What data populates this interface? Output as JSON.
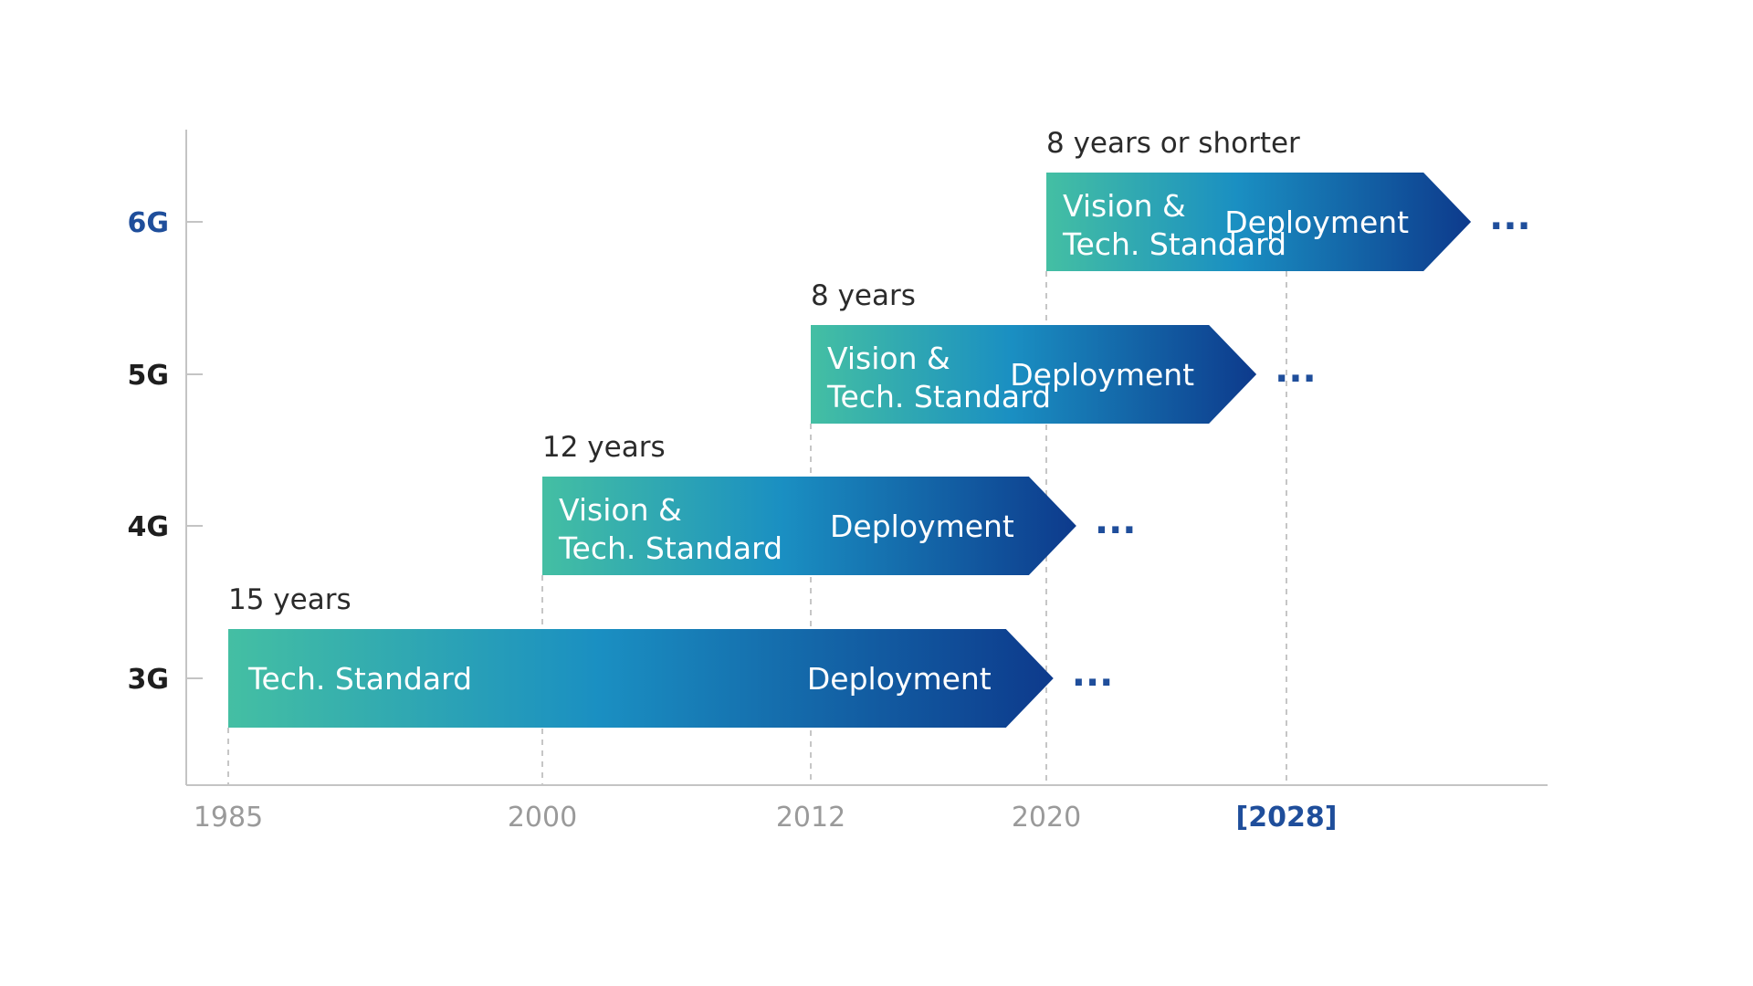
{
  "colors": {
    "gradient_start": "#44bfa3",
    "gradient_mid": "#1a8fc2",
    "gradient_end": "#0d3a8c",
    "highlight_blue": "#1f4e9b",
    "generation_label": "#1e1e1e",
    "axis": "#c4c4c4",
    "guide": "#c6c6c6",
    "year_label": "#9a9a9a"
  },
  "axis": {
    "years": [
      "1985",
      "2000",
      "2012",
      "2020",
      "[2028]"
    ],
    "highlight_year": "[2028]"
  },
  "generations": [
    {
      "name": "3G",
      "highlight": false,
      "start_year": 1985,
      "end_year": 2019,
      "duration_label": "15 years",
      "left_text": [
        "Tech. Standard"
      ],
      "right_text": "Deployment",
      "continuation": "..."
    },
    {
      "name": "4G",
      "highlight": false,
      "start_year": 2000,
      "end_year": 2021,
      "duration_label": "12 years",
      "left_text": [
        "Vision &",
        "Tech. Standard"
      ],
      "right_text": "Deployment",
      "continuation": "..."
    },
    {
      "name": "5G",
      "highlight": false,
      "start_year": 2012,
      "end_year": 2027,
      "duration_label": "8 years",
      "left_text": [
        "Vision &",
        "Tech. Standard"
      ],
      "right_text": "Deployment",
      "continuation": "..."
    },
    {
      "name": "6G",
      "highlight": true,
      "start_year": 2020,
      "end_year": 2035,
      "duration_label": "8 years or shorter",
      "left_text": [
        "Vision &",
        "Tech. Standard"
      ],
      "right_text": "Deployment",
      "continuation": "..."
    }
  ]
}
